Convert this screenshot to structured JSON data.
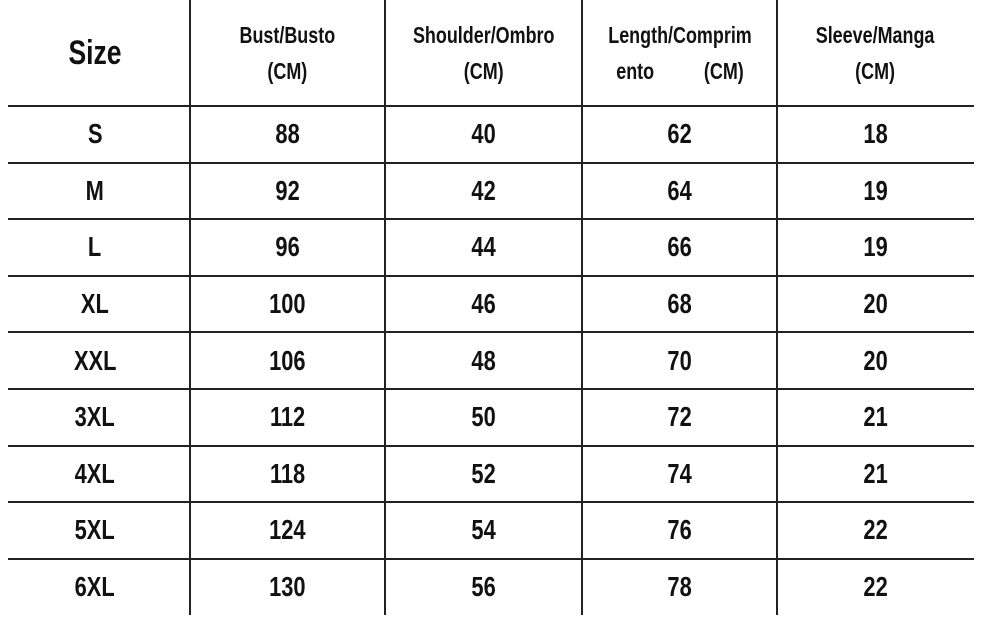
{
  "table": {
    "headers": [
      {
        "line1": "Size",
        "line2": ""
      },
      {
        "line1": "Bust/Busto",
        "line2": "(CM)"
      },
      {
        "line1": "Shoulder/Ombro",
        "line2": "(CM)"
      },
      {
        "line1": "Length/Comprim",
        "line2": "ento          (CM)"
      },
      {
        "line1": "Sleeve/Manga",
        "line2": "(CM)"
      }
    ],
    "rows": [
      [
        "S",
        "88",
        "40",
        "62",
        "18"
      ],
      [
        "M",
        "92",
        "42",
        "64",
        "19"
      ],
      [
        "L",
        "96",
        "44",
        "66",
        "19"
      ],
      [
        "XL",
        "100",
        "46",
        "68",
        "20"
      ],
      [
        "XXL",
        "106",
        "48",
        "70",
        "20"
      ],
      [
        "3XL",
        "112",
        "50",
        "72",
        "21"
      ],
      [
        "4XL",
        "118",
        "52",
        "74",
        "21"
      ],
      [
        "5XL",
        "124",
        "54",
        "76",
        "22"
      ],
      [
        "6XL",
        "130",
        "56",
        "78",
        "22"
      ]
    ]
  }
}
